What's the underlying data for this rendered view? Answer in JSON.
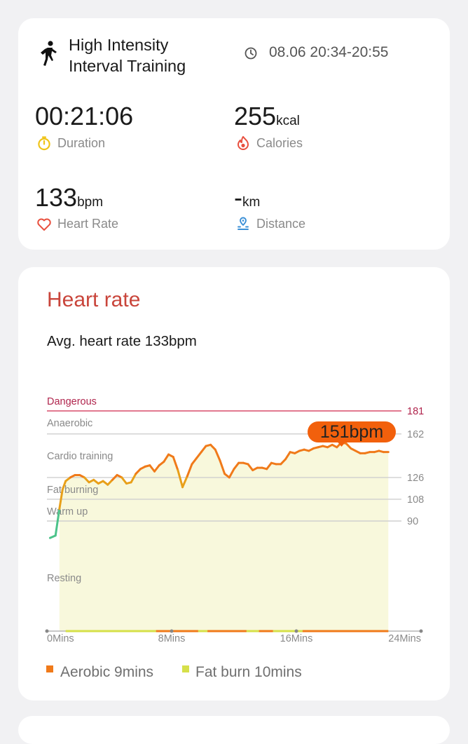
{
  "summary": {
    "title_line1": "High Intensity",
    "title_line2": "Interval Training",
    "time_range": "08.06 20:34-20:55",
    "duration": {
      "value": "00:21:06",
      "label": "Duration"
    },
    "calories": {
      "value": "255",
      "unit": "kcal",
      "label": "Calories"
    },
    "heart_rate": {
      "value": "133",
      "unit": "bpm",
      "label": "Heart Rate"
    },
    "distance": {
      "value": "-",
      "unit": "km",
      "label": "Distance"
    }
  },
  "colors": {
    "accent_red": "#c9453b",
    "dangerous": "#d94d6b",
    "aerobic": "#f07a1a",
    "fat_burn": "#d6e04a",
    "warmup_green": "#4cc38a",
    "fill": "#f8f8dc",
    "tooltip": "#f2600c"
  },
  "heart_rate_card": {
    "title": "Heart rate",
    "avg_text": "Avg. heart rate 133bpm",
    "tooltip": "151bpm",
    "legend": [
      {
        "label": "Aerobic 9mins",
        "color": "#f07a1a"
      },
      {
        "label": "Fat burn 10mins",
        "color": "#d6e04a"
      }
    ]
  },
  "chart_data": {
    "type": "line",
    "title": "",
    "xlabel": "",
    "ylabel": "",
    "x_ticks": [
      "0Mins",
      "8Mins",
      "16Mins",
      "24Mins"
    ],
    "xlim": [
      0,
      24
    ],
    "zones": [
      {
        "name": "Dangerous",
        "threshold": 181
      },
      {
        "name": "Anaerobic",
        "threshold": 162
      },
      {
        "name": "Cardio training",
        "threshold": 126
      },
      {
        "name": "Fat burning",
        "threshold": 108
      },
      {
        "name": "Warm up",
        "threshold": 90
      },
      {
        "name": "Resting",
        "threshold": null
      }
    ],
    "right_ticks": [
      181,
      162,
      126,
      108,
      90
    ],
    "series": [
      {
        "x": [
          0.2,
          0.55,
          0.8,
          1.0,
          1.2,
          1.5,
          1.8,
          2.1,
          2.4,
          2.7,
          3.0,
          3.3,
          3.6,
          3.9,
          4.2,
          4.5,
          4.8,
          5.1,
          5.4,
          5.7,
          6.0,
          6.3,
          6.6,
          6.9,
          7.2,
          7.5,
          7.8,
          8.1,
          8.4,
          8.7,
          9.0,
          9.3,
          9.6,
          9.9,
          10.2,
          10.5,
          10.8,
          11.1,
          11.4,
          11.7,
          12.0,
          12.3,
          12.6,
          12.9,
          13.2,
          13.5,
          13.8,
          14.1,
          14.4,
          14.7,
          15.0,
          15.3,
          15.6,
          15.9,
          16.2,
          16.5,
          16.8,
          17.1,
          17.4,
          17.7,
          18.0,
          18.3,
          18.6,
          18.9,
          19.2,
          19.5,
          19.8,
          20.1,
          20.4,
          20.7,
          21.0,
          21.3,
          21.6,
          21.9
        ],
        "y": [
          76,
          78,
          100,
          116,
          123,
          126,
          128,
          128,
          126,
          122,
          124,
          121,
          123,
          120,
          124,
          128,
          126,
          121,
          122,
          129,
          133,
          135,
          136,
          131,
          136,
          139,
          145,
          143,
          132,
          118,
          127,
          137,
          142,
          147,
          152,
          153,
          149,
          140,
          129,
          126,
          133,
          138,
          138,
          137,
          132,
          134,
          134,
          133,
          138,
          137,
          137,
          141,
          147,
          146,
          148,
          149,
          148,
          150,
          151,
          152,
          151,
          153,
          151,
          155,
          154,
          150,
          148,
          146,
          146,
          147,
          147,
          148,
          147,
          147
        ]
      }
    ]
  }
}
